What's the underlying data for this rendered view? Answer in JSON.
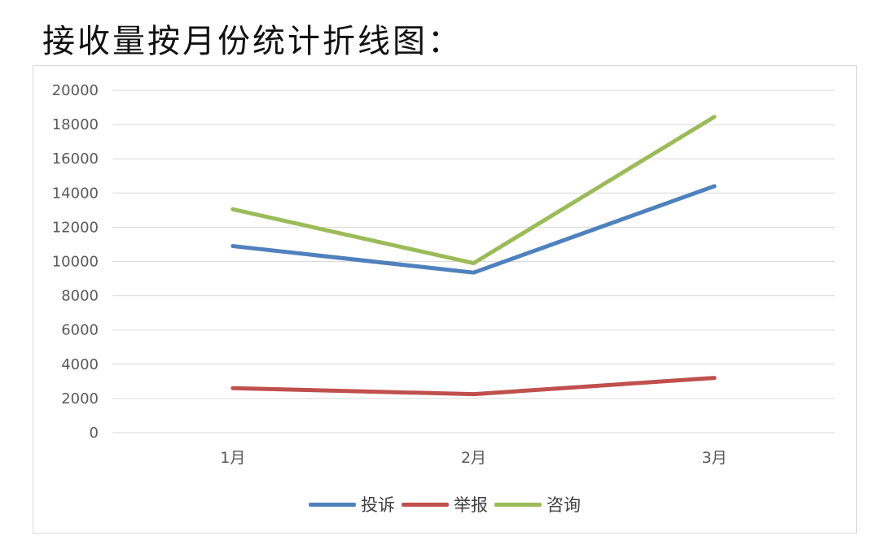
{
  "page": {
    "heading": "接收量按月份统计折线图："
  },
  "chart_data": {
    "type": "line",
    "title": "",
    "xlabel": "",
    "ylabel": "",
    "categories": [
      "1月",
      "2月",
      "3月"
    ],
    "ylim": [
      0,
      20000
    ],
    "yticks": [
      0,
      2000,
      4000,
      6000,
      8000,
      10000,
      12000,
      14000,
      16000,
      18000,
      20000
    ],
    "grid": true,
    "legend_position": "bottom",
    "series": [
      {
        "name": "投诉",
        "color": "#4f81bd",
        "values": [
          10900,
          9350,
          14400
        ]
      },
      {
        "name": "举报",
        "color": "#c0504d",
        "values": [
          2600,
          2250,
          3200
        ]
      },
      {
        "name": "咨询",
        "color": "#9bbb59",
        "values": [
          13050,
          9900,
          18450
        ]
      }
    ]
  }
}
